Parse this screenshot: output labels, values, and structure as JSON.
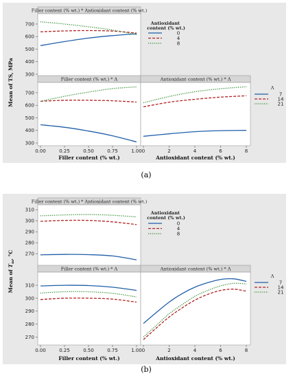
{
  "colors": {
    "blue": "#1f5ea8",
    "red": "#b22222",
    "green": "#2e8b2e",
    "panel_bg": "#e8e8e8",
    "header_bg": "#d6d6d6"
  },
  "figure_a": {
    "caption": "(a)",
    "ylabel": "Mean of TS, MPa",
    "top_header": "Filler content (% wt.) * Antioxidant content (% wt.)",
    "left_header": "Filler content (% wt.) * Λ",
    "right_header": "Antioxidant content (% wt.) * Λ",
    "left_xlabel": "Filler content (% wt.)",
    "right_xlabel": "Antioxidant content (% wt.)",
    "legend1_title": "Antioxidant content (% wt.)",
    "legend1_items": [
      "0",
      "4",
      "8"
    ],
    "legend2_title": "Λ",
    "legend2_items": [
      "7",
      "14",
      "21"
    ]
  },
  "figure_b": {
    "caption": "(b)",
    "ylabel": "Mean of Tm, °C",
    "top_header": "Filler content (% wt.) * Antioxidant content (% wt.)",
    "left_header": "Filler content (% wt.) * Λ",
    "right_header": "Antioxidant content (% wt.) * Λ",
    "left_xlabel": "Filler content (% wt.)",
    "right_xlabel": "Antioxidant content (% wt.)",
    "legend1_title": "Antioxidant content (% wt.)",
    "legend1_items": [
      "0",
      "4",
      "8"
    ],
    "legend2_title": "Λ",
    "legend2_items": [
      "7",
      "14",
      "21"
    ]
  },
  "chart_data": [
    {
      "type": "line",
      "id": "a-top",
      "title": "Filler content (% wt.) * Antioxidant content (% wt.)",
      "xlabel": "",
      "ylabel": "Mean of TS, MPa",
      "x": [
        0,
        0.25,
        0.5,
        0.75,
        1.0
      ],
      "xlim": [
        0,
        1
      ],
      "ylim": [
        300,
        760
      ],
      "yticks": [
        300,
        400,
        500,
        600,
        700
      ],
      "series": [
        {
          "name": "0",
          "values": [
            528,
            560,
            588,
            608,
            622
          ]
        },
        {
          "name": "4",
          "values": [
            638,
            645,
            648,
            644,
            628
          ]
        },
        {
          "name": "8",
          "values": [
            718,
            700,
            678,
            652,
            615
          ]
        }
      ]
    },
    {
      "type": "line",
      "id": "a-left",
      "title": "Filler content (% wt.) * Λ",
      "xlabel": "Filler content (% wt.)",
      "ylabel": "Mean of TS, MPa",
      "x": [
        0,
        0.25,
        0.5,
        0.75,
        1.0
      ],
      "xlim": [
        0,
        1
      ],
      "ylim": [
        300,
        760
      ],
      "xticks": [
        "0.00",
        "0.25",
        "0.50",
        "0.75",
        "1.00"
      ],
      "yticks": [
        300,
        400,
        500,
        600,
        700
      ],
      "series": [
        {
          "name": "7",
          "values": [
            445,
            425,
            395,
            357,
            308
          ]
        },
        {
          "name": "14",
          "values": [
            632,
            640,
            640,
            636,
            626
          ]
        },
        {
          "name": "21",
          "values": [
            632,
            672,
            705,
            733,
            747
          ]
        }
      ]
    },
    {
      "type": "line",
      "id": "a-right",
      "title": "Antioxidant content (% wt.) * Λ",
      "xlabel": "Antioxidant content (% wt.)",
      "ylabel": "",
      "x": [
        0,
        2,
        4,
        6,
        8
      ],
      "xlim": [
        0,
        8
      ],
      "ylim": [
        300,
        760
      ],
      "xticks": [
        "0",
        "2",
        "4",
        "6",
        "8"
      ],
      "series": [
        {
          "name": "7",
          "values": [
            353,
            373,
            390,
            398,
            400
          ]
        },
        {
          "name": "14",
          "values": [
            588,
            625,
            648,
            665,
            676
          ]
        },
        {
          "name": "21",
          "values": [
            620,
            670,
            708,
            732,
            748
          ]
        }
      ]
    },
    {
      "type": "line",
      "id": "b-top",
      "title": "Filler content (% wt.) * Antioxidant content (% wt.)",
      "xlabel": "",
      "ylabel": "Mean of Tm, °C",
      "x": [
        0,
        0.25,
        0.5,
        0.75,
        1.0
      ],
      "xlim": [
        0,
        1
      ],
      "ylim": [
        262,
        312
      ],
      "yticks": [
        270,
        280,
        290,
        300,
        310
      ],
      "series": [
        {
          "name": "0",
          "values": [
            269,
            269.4,
            269.2,
            268,
            264.5
          ]
        },
        {
          "name": "4",
          "values": [
            299.5,
            300.3,
            300.3,
            299,
            296.5
          ]
        },
        {
          "name": "8",
          "values": [
            304.5,
            305.3,
            305.6,
            305,
            303.5
          ]
        }
      ]
    },
    {
      "type": "line",
      "id": "b-left",
      "title": "Filler content (% wt.) * Λ",
      "xlabel": "Filler content (% wt.)",
      "ylabel": "Mean of Tm, °C",
      "x": [
        0,
        0.25,
        0.5,
        0.75,
        1.0
      ],
      "xlim": [
        0,
        1
      ],
      "ylim": [
        266,
        318
      ],
      "xticks": [
        "0.00",
        "0.25",
        "0.50",
        "0.75",
        "1.00"
      ],
      "yticks": [
        270,
        280,
        290,
        300,
        310
      ],
      "series": [
        {
          "name": "7",
          "values": [
            309.5,
            310,
            309.8,
            308.5,
            306
          ]
        },
        {
          "name": "14",
          "values": [
            299,
            300,
            300,
            299.3,
            297
          ]
        },
        {
          "name": "21",
          "values": [
            304,
            305,
            305,
            303.8,
            301
          ]
        }
      ]
    },
    {
      "type": "line",
      "id": "b-right",
      "title": "Antioxidant content (% wt.) * Λ",
      "xlabel": "Antioxidant content (% wt.)",
      "ylabel": "",
      "x": [
        0,
        1,
        2,
        3,
        4,
        5,
        6,
        7,
        8
      ],
      "xlim": [
        0,
        8
      ],
      "ylim": [
        266,
        318
      ],
      "xticks": [
        "0",
        "2",
        "4",
        "6",
        "8"
      ],
      "series": [
        {
          "name": "7",
          "values": [
            280.5,
            289,
            297,
            303.5,
            308.5,
            312,
            314.5,
            315,
            313
          ]
        },
        {
          "name": "14",
          "values": [
            268,
            277,
            285.5,
            292.5,
            298.5,
            303,
            306,
            307,
            305.5
          ]
        },
        {
          "name": "21",
          "values": [
            270,
            279,
            288,
            295,
            301.5,
            306,
            309.5,
            311.5,
            311
          ]
        }
      ]
    }
  ]
}
